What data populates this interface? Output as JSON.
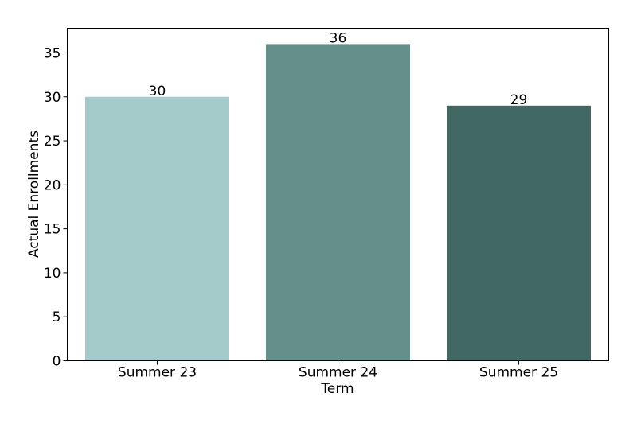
{
  "chart_data": {
    "type": "bar",
    "title": "",
    "xlabel": "Term",
    "ylabel": "Actual Enrollments",
    "categories": [
      "Summer 23",
      "Summer 24",
      "Summer 25"
    ],
    "values": [
      30,
      36,
      29
    ],
    "data_labels": [
      "30",
      "36",
      "29"
    ],
    "colors": [
      "#a4cbc9",
      "#658f8a",
      "#416863"
    ],
    "ylim": [
      0,
      37.8
    ],
    "yticks": [
      0,
      5,
      10,
      15,
      20,
      25,
      30,
      35
    ],
    "ytick_labels": [
      "0",
      "5",
      "10",
      "15",
      "20",
      "25",
      "30",
      "35"
    ],
    "grid": false,
    "legend": "none"
  }
}
